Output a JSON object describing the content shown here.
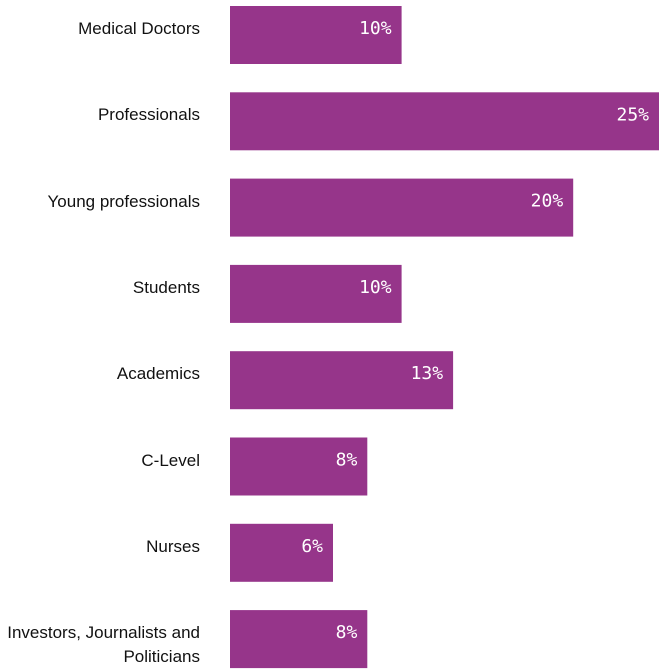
{
  "chart_data": {
    "type": "bar",
    "orientation": "horizontal",
    "categories": [
      "Medical Doctors",
      "Professionals",
      "Young professionals",
      "Students",
      "Academics",
      "C-Level",
      "Nurses",
      "Investors, Journalists and Politicians"
    ],
    "values": [
      10,
      25,
      20,
      10,
      13,
      8,
      6,
      8
    ],
    "data_labels": [
      "10%",
      "25%",
      "20%",
      "10%",
      "13%",
      "8%",
      "6%",
      "8%"
    ],
    "xlim": [
      0,
      25
    ],
    "unit": "%",
    "grid": false,
    "legend": "none",
    "bar_color": "#96358a",
    "label_color": "#ffffff",
    "text_color": "#111111"
  }
}
